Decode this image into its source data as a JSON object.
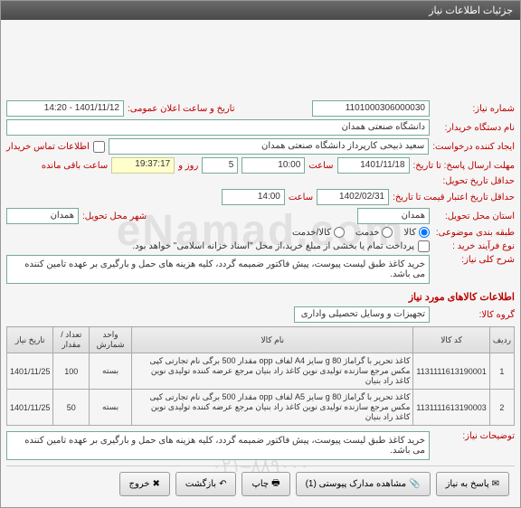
{
  "titlebar": "جزئیات اطلاعات نیاز",
  "fields": {
    "need_no_label": "شماره نیاز:",
    "need_no": "1101000306000030",
    "announce_label": "تاریخ و ساعت اعلان عمومی:",
    "announce": "1401/11/12 - 14:20",
    "buyer_label": "نام دستگاه خریدار:",
    "buyer": "دانشگاه صنعتی همدان",
    "requester_label": "ایجاد کننده درخواست:",
    "requester": "سعید ذبیحی کارپرداز دانشگاه صنعتی همدان",
    "contact_cb": "اطلاعات تماس خریدار",
    "deadline_label": "حداقل تاریخ تحویل:",
    "deadline_date": "1401/11/18",
    "time_label": "ساعت",
    "deadline_time": "10:00",
    "days_label": "روز و",
    "days": "5",
    "timer": "19:37:17",
    "remaining": "ساعت باقی مانده",
    "reply_deadline_label": "مهلت ارسال پاسخ: تا تاریخ:",
    "validity_label": "حداقل تاریخ اعتبار قیمت تا تاریخ:",
    "validity_date": "1402/02/31",
    "validity_time": "14:00",
    "province_label": "استان محل تحویل:",
    "province": "همدان",
    "city_label": "شهر محل تحویل:",
    "city": "همدان",
    "class_label": "طبقه بندی موضوعی:",
    "radio_goods": "کالا",
    "radio_service": "خدمت",
    "radio_both": "کالا/خدمت",
    "process_label": "نوع فرآیند خرید :",
    "process_cb": "پرداخت تمام یا بخشی از مبلغ خرید،از محل \"اسناد خزانه اسلامی\" خواهد بود.",
    "desc_label": "شرح کلی نیاز:",
    "desc": "خرید کاغذ طبق لیست پیوست، پیش فاکتور ضمیمه گردد، کلیه هزینه های حمل و بارگیری بر عهده تامین کننده می باشد.",
    "goods_section": "اطلاعات کالاهای مورد نیاز",
    "group_label": "گروه کالا:",
    "group": "تجهیزات و وسایل تحصیلی واداری",
    "notes_label": "توضیحات نیاز:",
    "notes": "خرید کاغذ طبق لیست پیوست، پیش فاکتور ضمیمه گردد، کلیه هزینه های حمل و بارگیری بر عهده تامین کننده می باشد."
  },
  "table": {
    "headers": [
      "ردیف",
      "کد کالا",
      "نام کالا",
      "واحد شمارش",
      "تعداد / مقدار",
      "تاریخ نیاز"
    ],
    "rows": [
      {
        "n": "1",
        "code": "1131111613190001",
        "name": "کاغذ تحریر با گراماژ 80 g سایز A4 لفاف opp مقدار 500 برگی نام تجارتی کپی مکس مرجع سازنده تولیدی نوین کاغذ راد بنیان مرجع عرضه کننده تولیدی نوین کاغذ راد بنیان",
        "unit": "بسته",
        "qty": "100",
        "date": "1401/11/25"
      },
      {
        "n": "2",
        "code": "1131111613190003",
        "name": "کاغذ تحریر با گراماژ 80 g سایز A5 لفاف opp مقدار 500 برگی نام تجارتی کپی مکس مرجع سازنده تولیدی نوین کاغذ راد بنیان مرجع عرضه کننده تولیدی نوین کاغذ راد بنیان",
        "unit": "بسته",
        "qty": "50",
        "date": "1401/11/25"
      }
    ]
  },
  "buttons": {
    "reply": "پاسخ به نیاز",
    "docs": "مشاهده مدارک پیوستی (1)",
    "print": "چاپ",
    "back": "بازگشت",
    "exit": "خروج"
  },
  "watermark": "eNamad.com",
  "watermark2": "۰۲۱–۸۸۹۰۰۰"
}
